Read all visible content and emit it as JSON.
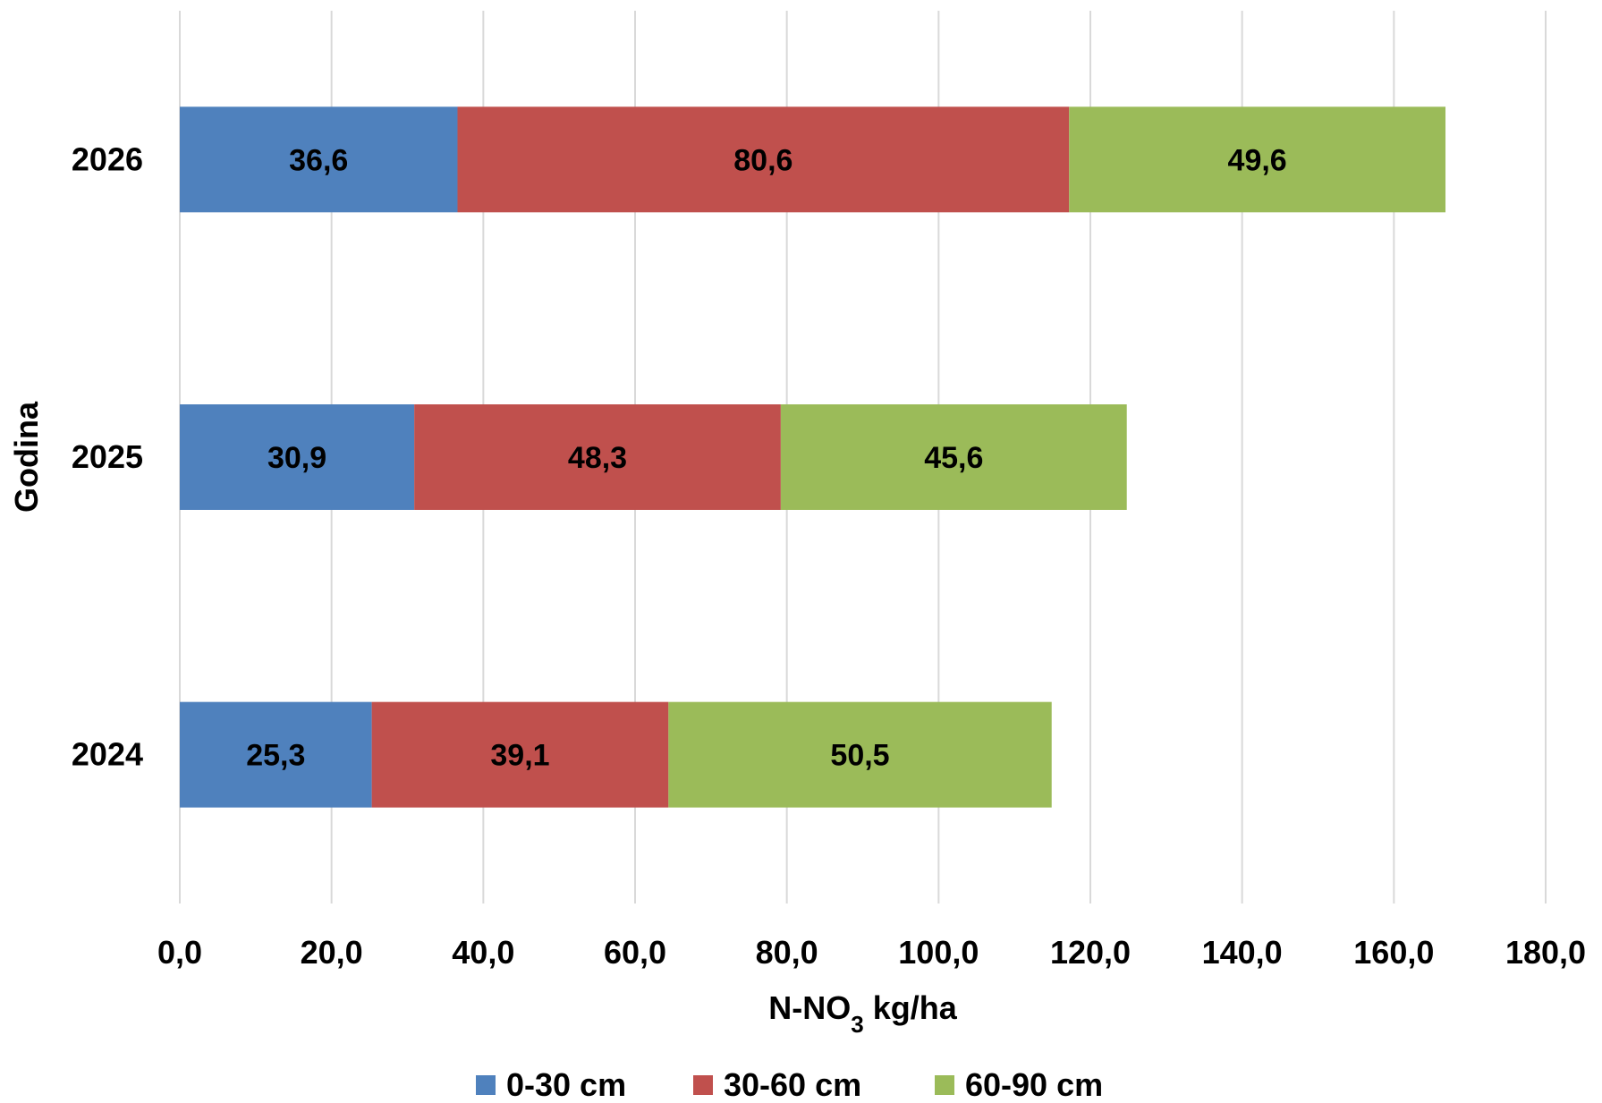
{
  "chart_data": {
    "type": "bar",
    "orientation": "horizontal",
    "stacked": true,
    "title": "",
    "xlabel": "N-NO",
    "xlabel_subscript": "3",
    "xlabel_suffix": " kg/ha",
    "ylabel": "Godina",
    "xlim": [
      0,
      180
    ],
    "x_ticks": [
      "0,0",
      "20,0",
      "40,0",
      "60,0",
      "80,0",
      "100,0",
      "120,0",
      "140,0",
      "160,0",
      "180,0"
    ],
    "categories": [
      "2024",
      "2025",
      "2026"
    ],
    "series": [
      {
        "name": "0-30 cm",
        "color": "#4F81BD",
        "values": [
          25.3,
          30.9,
          36.6
        ],
        "labels": [
          "25,3",
          "30,9",
          "36,6"
        ]
      },
      {
        "name": "30-60 cm",
        "color": "#C0504D",
        "values": [
          39.1,
          48.3,
          80.6
        ],
        "labels": [
          "39,1",
          "48,3",
          "80,6"
        ]
      },
      {
        "name": "60-90 cm",
        "color": "#9BBB59",
        "values": [
          50.5,
          45.6,
          49.6
        ],
        "labels": [
          "50,5",
          "45,6",
          "49,6"
        ]
      }
    ],
    "grid": "vertical",
    "legend_position": "bottom"
  }
}
